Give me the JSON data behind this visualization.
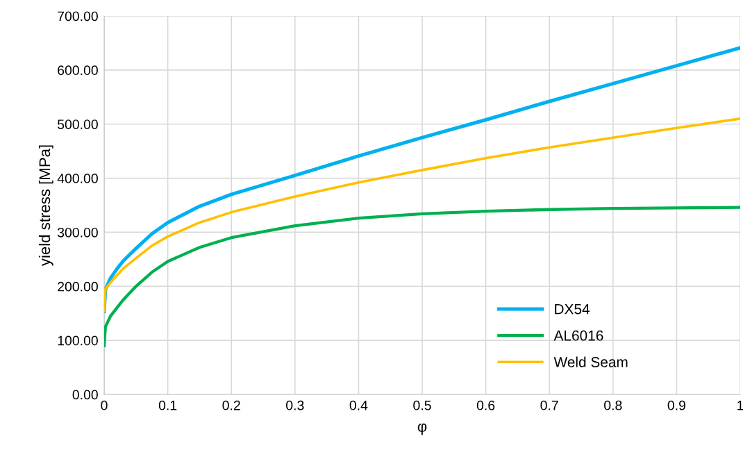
{
  "chart_data": {
    "type": "line",
    "xlabel": "φ",
    "ylabel": "yield stress [MPa]",
    "x": [
      0,
      0.002,
      0.01,
      0.02,
      0.03,
      0.05,
      0.075,
      0.1,
      0.15,
      0.2,
      0.3,
      0.4,
      0.5,
      0.6,
      0.7,
      0.8,
      0.9,
      1.0
    ],
    "series": [
      {
        "name": "DX54",
        "color": "#00b0f0",
        "values": [
          154,
          194,
          215,
          232,
          247,
          270,
          297,
          318,
          348,
          370,
          405,
          441,
          475,
          508,
          542,
          575,
          608,
          641
        ]
      },
      {
        "name": "AL6016",
        "color": "#00b050",
        "values": [
          90,
          125,
          145,
          160,
          175,
          200,
          226,
          246,
          272,
          290,
          312,
          326,
          334,
          339,
          342,
          344,
          345,
          346
        ]
      },
      {
        "name": "Weld Seam",
        "color": "#ffc000",
        "values": [
          155,
          195,
          207,
          220,
          233,
          252,
          275,
          292,
          318,
          337,
          366,
          392,
          415,
          437,
          457,
          475,
          493,
          510
        ]
      }
    ],
    "xlim": [
      0,
      1
    ],
    "xticks": [
      0,
      0.1,
      0.2,
      0.3,
      0.4,
      0.5,
      0.6,
      0.7,
      0.8,
      0.9,
      1
    ],
    "ylim": [
      0,
      700
    ],
    "yticks": [
      {
        "value": 0,
        "label": "0.00"
      },
      {
        "value": 100,
        "label": "100.00"
      },
      {
        "value": 200,
        "label": "200.00"
      },
      {
        "value": 300,
        "label": "300.00"
      },
      {
        "value": 400,
        "label": "400.00"
      },
      {
        "value": 500,
        "label": "500.00"
      },
      {
        "value": 600,
        "label": "600.00"
      },
      {
        "value": 700,
        "label": "700.00"
      }
    ],
    "grid": true,
    "legend": "bottom right",
    "marker": "none",
    "line_style": "solid"
  }
}
